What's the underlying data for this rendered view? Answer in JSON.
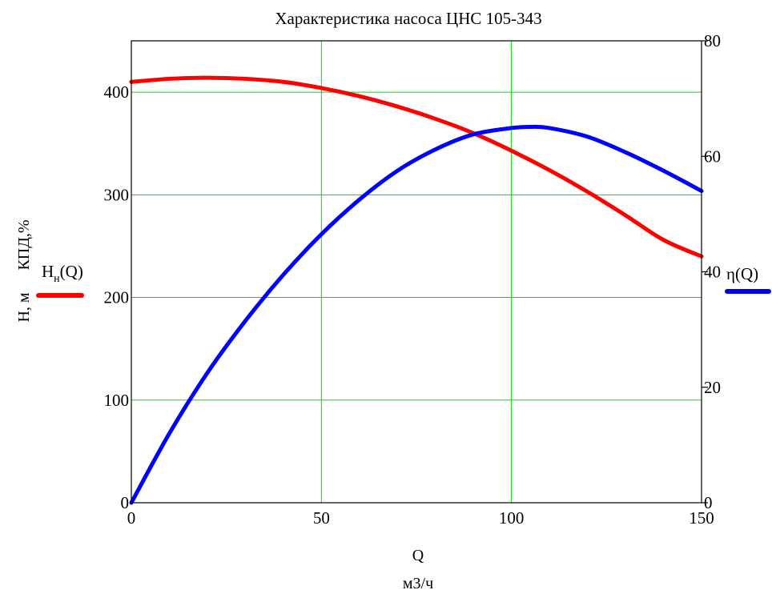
{
  "chart_data": {
    "type": "line",
    "title": "Характеристика насоса ЦНС 105-343",
    "xlabel": "Q",
    "xunit": "м3/ч",
    "ylabel_left": "H, м",
    "ylabel_left_extra": "КПД,%",
    "xlim": [
      0,
      150
    ],
    "ylim_left": [
      0,
      450
    ],
    "ylim_right": [
      0,
      80
    ],
    "x_ticks": [
      0,
      50,
      100,
      150
    ],
    "y_ticks_left": [
      0,
      100,
      200,
      300,
      400
    ],
    "y_ticks_right": [
      0,
      20,
      40,
      60,
      80
    ],
    "grid": true,
    "grid_color": "#00e000",
    "series": [
      {
        "name": "H",
        "name_sub": "н",
        "name_arg": "(Q)",
        "axis": "left",
        "color": "#ff0000",
        "x": [
          0,
          10,
          20,
          30,
          40,
          50,
          60,
          70,
          80,
          90,
          100,
          110,
          120,
          130,
          140,
          150
        ],
        "values": [
          410,
          413,
          414,
          413,
          410,
          404,
          396,
          386,
          374,
          360,
          343,
          324,
          303,
          280,
          256,
          240
        ]
      },
      {
        "name": "η(Q)",
        "axis": "right",
        "color": "#0000ff",
        "x": [
          0,
          10,
          20,
          30,
          40,
          50,
          60,
          70,
          80,
          90,
          100,
          105,
          110,
          120,
          130,
          140,
          150
        ],
        "values": [
          0,
          12,
          22.5,
          31.5,
          39.5,
          46.5,
          52.5,
          57.5,
          61.2,
          63.8,
          64.9,
          65.1,
          64.9,
          63.4,
          60.7,
          57.5,
          54
        ]
      }
    ]
  }
}
